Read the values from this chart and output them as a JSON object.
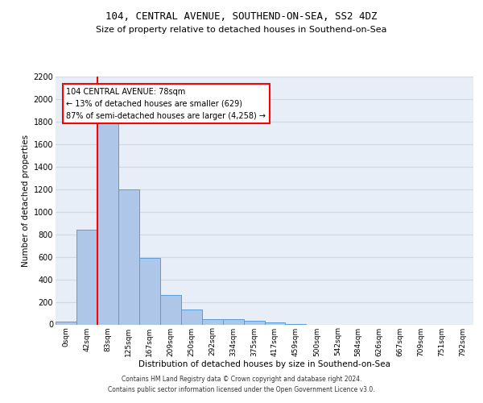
{
  "title": "104, CENTRAL AVENUE, SOUTHEND-ON-SEA, SS2 4DZ",
  "subtitle": "Size of property relative to detached houses in Southend-on-Sea",
  "xlabel": "Distribution of detached houses by size in Southend-on-Sea",
  "ylabel": "Number of detached properties",
  "bar_values": [
    25,
    840,
    1800,
    1200,
    590,
    260,
    130,
    50,
    45,
    32,
    20,
    5,
    0,
    0,
    0,
    0,
    0,
    0,
    0,
    0
  ],
  "bar_labels": [
    "0sqm",
    "42sqm",
    "83sqm",
    "125sqm",
    "167sqm",
    "209sqm",
    "250sqm",
    "292sqm",
    "334sqm",
    "375sqm",
    "417sqm",
    "459sqm",
    "500sqm",
    "542sqm",
    "584sqm",
    "626sqm",
    "667sqm",
    "709sqm",
    "751sqm",
    "792sqm"
  ],
  "bar_color": "#aec6e8",
  "bar_edge_color": "#5b9bd5",
  "grid_color": "#d0d8e8",
  "bg_color": "#e8eef8",
  "annotation_line1": "104 CENTRAL AVENUE: 78sqm",
  "annotation_line2": "← 13% of detached houses are smaller (629)",
  "annotation_line3": "87% of semi-detached houses are larger (4,258) →",
  "vline_x": 1.5,
  "vline_color": "red",
  "ylim_max": 2200,
  "yticks": [
    0,
    200,
    400,
    600,
    800,
    1000,
    1200,
    1400,
    1600,
    1800,
    2000,
    2200
  ],
  "footer_line1": "Contains HM Land Registry data © Crown copyright and database right 2024.",
  "footer_line2": "Contains public sector information licensed under the Open Government Licence v3.0."
}
